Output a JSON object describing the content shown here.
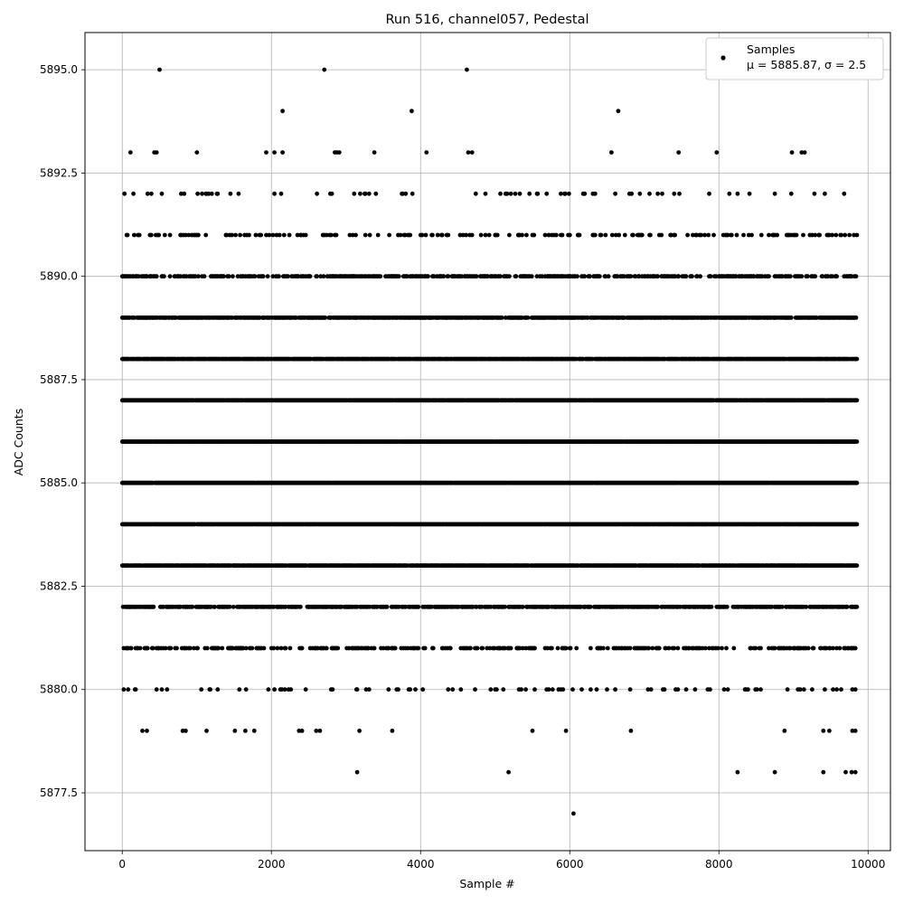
{
  "chart_data": {
    "type": "scatter",
    "title": "Run 516, channel057, Pedestal",
    "xlabel": "Sample #",
    "ylabel": "ADC Counts",
    "xlim": [
      -500,
      10300
    ],
    "ylim": [
      5876.1,
      5895.9
    ],
    "xticks": [
      0,
      2000,
      4000,
      6000,
      8000,
      10000
    ],
    "xtick_labels": [
      "0",
      "2000",
      "4000",
      "6000",
      "8000",
      "10000"
    ],
    "yticks": [
      5877.5,
      5880.0,
      5882.5,
      5885.0,
      5887.5,
      5890.0,
      5892.5,
      5895.0
    ],
    "ytick_labels": [
      "5877.5",
      "5880.0",
      "5882.5",
      "5885.0",
      "5887.5",
      "5890.0",
      "5892.5",
      "5895.0"
    ],
    "grid": true,
    "legend_position": "top-right",
    "marker_color": "#000000",
    "series": [
      {
        "name": "Samples",
        "stats_label": "μ = 5885.87, σ = 2.5",
        "x_range": [
          0,
          9850
        ],
        "levels": [
          {
            "y": 5877,
            "density": 0.0,
            "x": [
              6050
            ]
          },
          {
            "y": 5878,
            "density": 0.0,
            "x": [
              3150,
              5180,
              8250,
              8750,
              9400,
              9700,
              9780,
              9830
            ]
          },
          {
            "y": 5879,
            "density": 0.0,
            "x": [
              270,
              330,
              810,
              850,
              1130,
              1510,
              1650,
              1770,
              2370,
              2410,
              2600,
              2650,
              3180,
              3620,
              5500,
              5950,
              6820,
              8880,
              9400,
              9480,
              9790,
              9830
            ]
          },
          {
            "y": 5880,
            "density": 0.08,
            "x": []
          },
          {
            "y": 5881,
            "density": 0.3,
            "x": []
          },
          {
            "y": 5882,
            "density": 0.6,
            "x": []
          },
          {
            "y": 5883,
            "density": 0.92,
            "x": []
          },
          {
            "y": 5884,
            "density": 0.97,
            "x": []
          },
          {
            "y": 5885,
            "density": 0.99,
            "x": []
          },
          {
            "y": 5886,
            "density": 0.99,
            "x": []
          },
          {
            "y": 5887,
            "density": 0.97,
            "x": []
          },
          {
            "y": 5888,
            "density": 0.92,
            "x": []
          },
          {
            "y": 5889,
            "density": 0.7,
            "x": []
          },
          {
            "y": 5890,
            "density": 0.45,
            "x": []
          },
          {
            "y": 5891,
            "density": 0.18,
            "x": []
          },
          {
            "y": 5892,
            "density": 0.07,
            "x": []
          },
          {
            "y": 5893,
            "density": 0.0,
            "x": [
              110,
              430,
              460,
              1000,
              1930,
              2040,
              2150,
              2850,
              2880,
              2910,
              3380,
              4080,
              4640,
              4690,
              6560,
              7460,
              7970,
              8980,
              9110,
              9150
            ]
          },
          {
            "y": 5894,
            "density": 0.0,
            "x": [
              2150,
              3880,
              6650
            ]
          },
          {
            "y": 5895,
            "density": 0.0,
            "x": [
              500,
              2710,
              4620
            ]
          }
        ]
      }
    ]
  }
}
